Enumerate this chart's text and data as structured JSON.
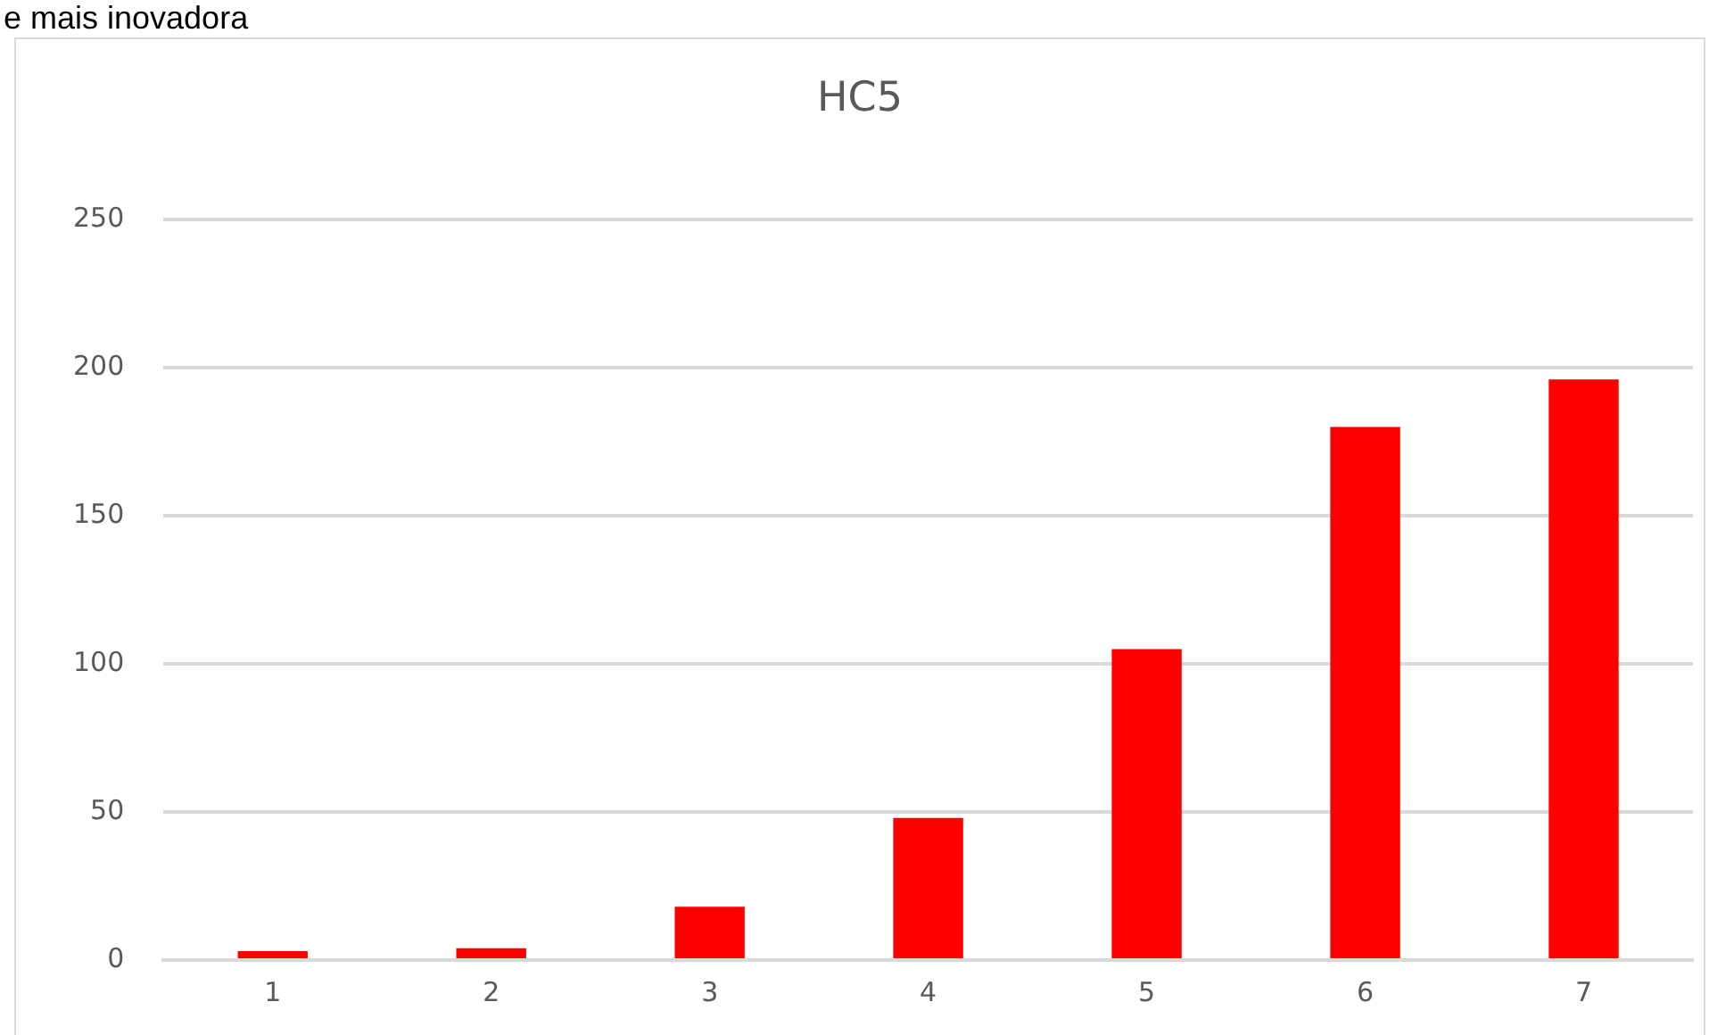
{
  "chart_data": {
    "type": "bar",
    "title": "HC5",
    "annotations": [
      "e mais inovadora"
    ],
    "categories": [
      "1",
      "2",
      "3",
      "4",
      "5",
      "6",
      "7"
    ],
    "values": [
      3,
      4,
      18,
      48,
      105,
      180,
      196
    ],
    "color": "#ff0000",
    "ylim": [
      0,
      250
    ],
    "yticks": [
      0,
      50,
      100,
      150,
      200,
      250
    ],
    "grid": "y",
    "legend": false
  }
}
